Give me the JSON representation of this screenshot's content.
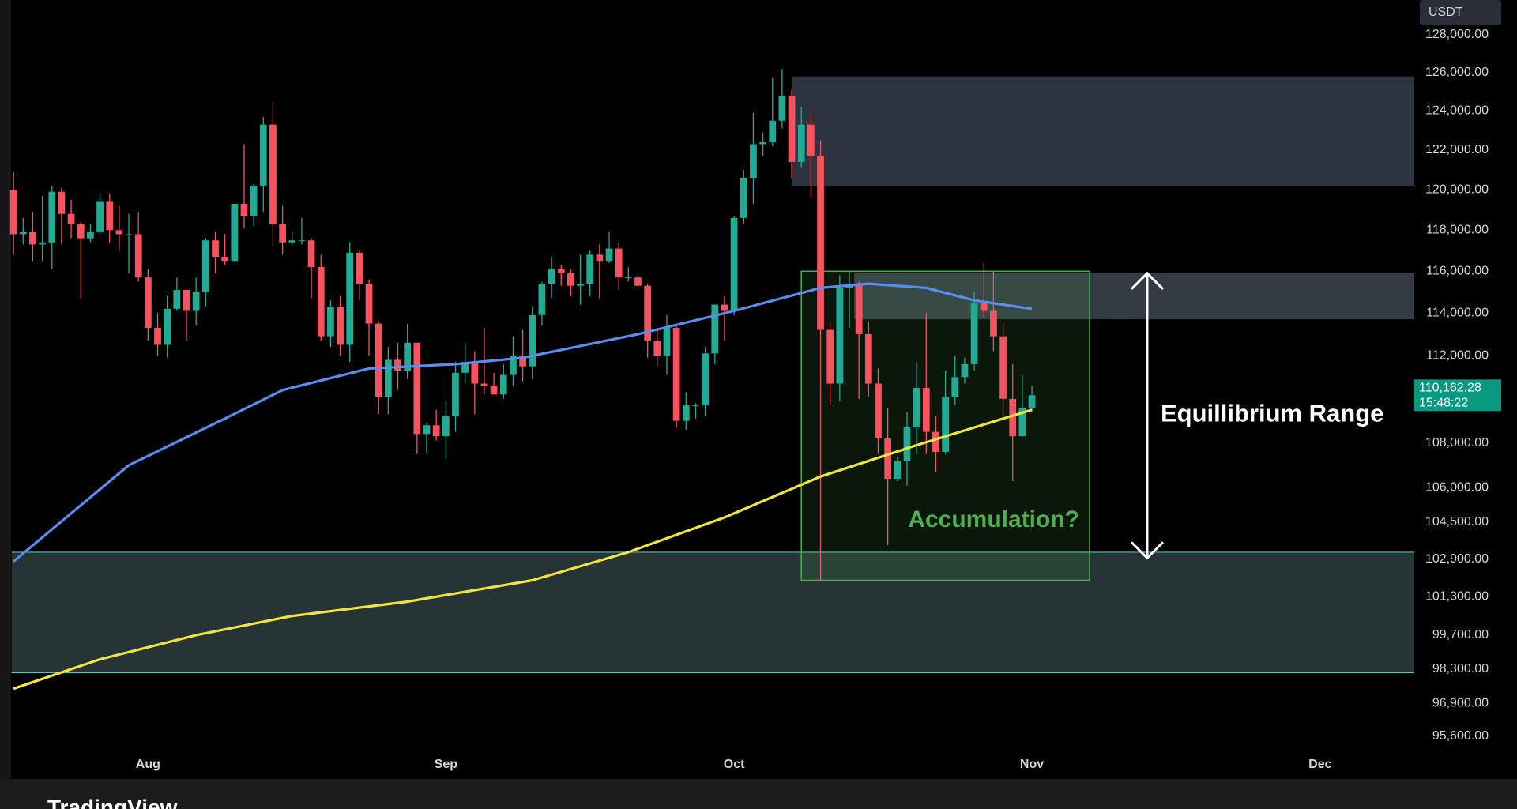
{
  "chart_data": {
    "type": "candlestick",
    "log": true,
    "grid": false,
    "currency": "USDT",
    "brand": "TradingView",
    "up_color": "#22ab94",
    "down_color": "#f7525f",
    "xlim": [
      -0.2,
      145.8
    ],
    "xticks": [
      {
        "value": 14,
        "label": "Aug"
      },
      {
        "value": 45,
        "label": "Sep"
      },
      {
        "value": 75,
        "label": "Oct"
      },
      {
        "value": 106,
        "label": "Nov"
      },
      {
        "value": 136,
        "label": "Dec"
      }
    ],
    "ylim": [
      95180,
      129860
    ],
    "yticks": [
      {
        "value": 128000,
        "label": "128,000.00"
      },
      {
        "value": 126000,
        "label": "126,000.00"
      },
      {
        "value": 124000,
        "label": "124,000.00"
      },
      {
        "value": 122000,
        "label": "122,000.00"
      },
      {
        "value": 120000,
        "label": "120,000.00"
      },
      {
        "value": 118000,
        "label": "118,000.00"
      },
      {
        "value": 116000,
        "label": "116,000.00"
      },
      {
        "value": 114000,
        "label": "114,000.00"
      },
      {
        "value": 112000,
        "label": "112,000.00"
      },
      {
        "value": 108000,
        "label": "108,000.00"
      },
      {
        "value": 106000,
        "label": "106,000.00"
      },
      {
        "value": 104500,
        "label": "104,500.00"
      },
      {
        "value": 102900,
        "label": "102,900.00"
      },
      {
        "value": 101300,
        "label": "101,300.00"
      },
      {
        "value": 99700,
        "label": "99,700.00"
      },
      {
        "value": 98300,
        "label": "98,300.00"
      },
      {
        "value": 96900,
        "label": "96,900.00"
      },
      {
        "value": 95600,
        "label": "95,600.00"
      }
    ],
    "open": [
      120000,
      117800,
      117900,
      117300,
      117400,
      119900,
      118800,
      118300,
      117600,
      117900,
      119400,
      118000,
      117800,
      117800,
      115700,
      113300,
      112500,
      114200,
      115100,
      114100,
      115000,
      117500,
      116700,
      116500,
      119300,
      118700,
      120200,
      123300,
      118300,
      117400,
      117500,
      117500,
      116200,
      112900,
      114300,
      112500,
      116900,
      115400,
      113500,
      110100,
      111800,
      111300,
      112600,
      108400,
      108800,
      108300,
      109200,
      111200,
      111700,
      110700,
      110600,
      110200,
      111100,
      112000,
      111500,
      113900,
      115400,
      116100,
      115900,
      115300,
      115400,
      116800,
      116500,
      117100,
      115700,
      115700,
      115300,
      112700,
      112000,
      113300,
      109000,
      109700,
      109700,
      112100,
      114400,
      114100,
      118600,
      120600,
      122300,
      122400,
      123500,
      124800,
      121400,
      123300,
      121700,
      113200,
      110700,
      115200,
      115300,
      113000,
      110700,
      108200,
      106400,
      107200,
      108700,
      110500,
      108500,
      107600,
      110100,
      111000,
      111600,
      114500,
      114100,
      112900,
      110000,
      108300,
      109600
    ],
    "high": [
      120900,
      118600,
      118900,
      119700,
      120200,
      120100,
      119500,
      118400,
      118300,
      119800,
      119800,
      119200,
      118800,
      118900,
      116100,
      114000,
      114800,
      115700,
      115100,
      115700,
      117600,
      117900,
      117800,
      119300,
      122300,
      120300,
      123700,
      124500,
      119200,
      117900,
      118600,
      117600,
      116800,
      114600,
      114800,
      117400,
      117000,
      115600,
      113600,
      112400,
      112600,
      113500,
      112600,
      108900,
      109500,
      109900,
      111700,
      112600,
      112200,
      113300,
      111200,
      111600,
      112900,
      113200,
      114300,
      115500,
      116700,
      116300,
      116100,
      116800,
      117000,
      117300,
      117900,
      117400,
      116200,
      115800,
      115400,
      113300,
      113900,
      113400,
      110300,
      109800,
      112400,
      114400,
      114800,
      118700,
      121000,
      123900,
      122900,
      125700,
      126200,
      125100,
      124200,
      123800,
      122500,
      113500,
      115800,
      116000,
      115500,
      113600,
      111400,
      109600,
      107400,
      109400,
      111700,
      114000,
      109200,
      111300,
      112000,
      111900,
      115000,
      116400,
      116000,
      113600,
      111600,
      111100,
      110600
    ],
    "low": [
      116800,
      117300,
      116500,
      116500,
      116100,
      117300,
      117600,
      114700,
      117400,
      117800,
      117400,
      117000,
      115900,
      115500,
      112700,
      112000,
      111900,
      114100,
      112700,
      113400,
      114300,
      115900,
      116300,
      116500,
      118100,
      118200,
      118900,
      117200,
      116800,
      117200,
      117300,
      114700,
      112700,
      112400,
      112000,
      111700,
      114600,
      112000,
      109300,
      109300,
      110400,
      110900,
      107500,
      107500,
      108100,
      107300,
      108500,
      110700,
      109300,
      110200,
      110200,
      110000,
      110600,
      110800,
      110900,
      113400,
      114700,
      115300,
      114800,
      114400,
      114800,
      114700,
      116400,
      115100,
      115500,
      115200,
      111900,
      111500,
      111100,
      108700,
      108600,
      109100,
      109200,
      111600,
      112700,
      113900,
      118300,
      119300,
      121700,
      122200,
      123100,
      120600,
      121100,
      119600,
      102000,
      109700,
      109900,
      113300,
      110000,
      110100,
      107500,
      103500,
      106300,
      106100,
      107500,
      107500,
      106700,
      107500,
      109700,
      110700,
      111300,
      113800,
      112200,
      109200,
      106300,
      108300,
      109400
    ],
    "close": [
      117800,
      117900,
      117300,
      117400,
      119900,
      118800,
      118300,
      117600,
      117900,
      119400,
      118000,
      117800,
      117800,
      115700,
      113300,
      112500,
      114200,
      115100,
      114100,
      115000,
      117500,
      116700,
      116500,
      119300,
      118700,
      120200,
      123300,
      118300,
      117400,
      117500,
      117500,
      116200,
      112900,
      114300,
      112500,
      116900,
      115400,
      113500,
      110100,
      111800,
      111300,
      112600,
      108400,
      108800,
      108300,
      109200,
      111200,
      111700,
      110700,
      110600,
      110200,
      111100,
      112000,
      111500,
      113900,
      115400,
      116100,
      115900,
      115300,
      115400,
      116800,
      116500,
      117100,
      115700,
      115700,
      115300,
      112700,
      112000,
      113300,
      109000,
      109700,
      109700,
      112100,
      114400,
      114100,
      118600,
      120600,
      122300,
      122400,
      123500,
      124800,
      121400,
      123300,
      121700,
      113200,
      110700,
      115200,
      115300,
      113000,
      110700,
      108200,
      106400,
      107200,
      108700,
      110500,
      108500,
      107600,
      110100,
      111000,
      111600,
      114500,
      114100,
      112900,
      110000,
      108300,
      109600,
      110162.28
    ],
    "lines": [
      {
        "color": "#5b8def",
        "x": [
          0,
          12,
          22,
          28,
          37,
          46,
          53,
          65,
          75,
          84,
          89,
          95,
          100,
          106
        ],
        "values": [
          102800,
          107000,
          109100,
          110400,
          111400,
          111600,
          111900,
          113000,
          114100,
          115200,
          115400,
          115200,
          114600,
          114200
        ]
      },
      {
        "color": "#f0e442",
        "x": [
          0,
          9,
          19,
          29,
          41,
          54,
          64,
          74,
          84,
          94,
          106
        ],
        "values": [
          97500,
          98700,
          99700,
          100500,
          101100,
          102000,
          103200,
          104700,
          106500,
          107900,
          109500
        ]
      }
    ],
    "zones": [
      {
        "color": "#323a46",
        "xlim": [
          81,
          145.8
        ],
        "ylim": [
          120200,
          125800
        ]
      },
      {
        "color": "#3a414c",
        "xlim": [
          87.5,
          145.8
        ],
        "ylim": [
          113700,
          115900
        ]
      },
      {
        "color": "#2b3a3c",
        "border": "#4cc3c3",
        "xlim": [
          -0.2,
          145.8
        ],
        "ylim": [
          98150,
          103200
        ]
      }
    ],
    "box": {
      "label": "Accumulation?",
      "color": "#4caf50",
      "xlim": [
        82,
        112
      ],
      "ylim": [
        102000,
        116000
      ]
    },
    "arrow": {
      "label": "Equillibrium Range",
      "x": 118,
      "ylim": [
        115900,
        102950
      ]
    },
    "last_price": {
      "value": 110162.28,
      "label": "110,162.28",
      "countdown": "15:48:22",
      "color": "#089981"
    }
  }
}
